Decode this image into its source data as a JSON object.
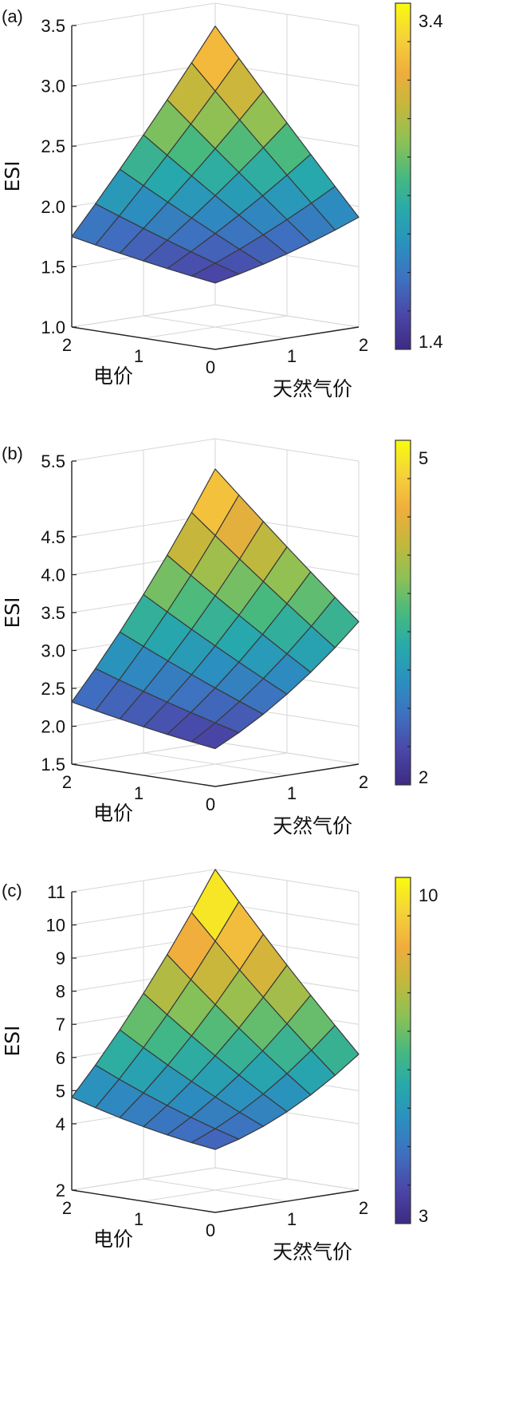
{
  "chart_data": [
    {
      "type": "surface",
      "panel_label": "(a)",
      "zlabel": "ESI",
      "xlabel": "电价",
      "ylabel": "天然气价",
      "x_ticks": [
        "2",
        "1",
        "0"
      ],
      "y_ticks": [
        "1",
        "2"
      ],
      "z_ticks": [
        "1.0",
        "1.5",
        "2.0",
        "2.5",
        "3.0",
        "3.5"
      ],
      "zlim": [
        1.0,
        3.5
      ],
      "x": [
        0,
        0.33,
        0.67,
        1.0,
        1.33,
        1.67,
        2.0
      ],
      "y": [
        0,
        0.33,
        0.67,
        1.0,
        1.33,
        1.67,
        2.0
      ],
      "surface_model": {
        "base": 1.55,
        "cx": 0.08,
        "cy": 0.12,
        "cxy": 0.3,
        "cxx": 0.01,
        "cyy": 0.03
      },
      "colorbar": {
        "min": 1.4,
        "max": 3.4,
        "tick_labels": [
          "1.4",
          "3.4"
        ]
      },
      "grid": true
    },
    {
      "type": "surface",
      "panel_label": "(b)",
      "zlabel": "ESI",
      "xlabel": "电价",
      "ylabel": "天然气价",
      "x_ticks": [
        "2",
        "1",
        "0"
      ],
      "y_ticks": [
        "1",
        "2"
      ],
      "z_ticks": [
        "1.5",
        "2.0",
        "2.5",
        "3.0",
        "3.5",
        "4.0",
        "4.5",
        "5.5"
      ],
      "zlim": [
        1.5,
        5.5
      ],
      "x": [
        0,
        0.33,
        0.67,
        1.0,
        1.33,
        1.67,
        2.0
      ],
      "y": [
        0,
        0.33,
        0.67,
        1.0,
        1.33,
        1.67,
        2.0
      ],
      "surface_model": {
        "base": 2.0,
        "cx": 0.12,
        "cy": 0.45,
        "cxy": 0.35,
        "cxx": 0.02,
        "cyy": 0.12
      },
      "colorbar": {
        "min": 1.8,
        "max": 5.2,
        "tick_labels": [
          "2",
          "5"
        ]
      },
      "grid": true
    },
    {
      "type": "surface",
      "panel_label": "(c)",
      "zlabel": "ESI",
      "xlabel": "电价",
      "ylabel": "天然气价",
      "x_ticks": [
        "2",
        "1",
        "0"
      ],
      "y_ticks": [
        "1",
        "2"
      ],
      "z_ticks": [
        "2",
        "4",
        "5",
        "6",
        "7",
        "8",
        "9",
        "10",
        "11"
      ],
      "zlim": [
        2,
        11
      ],
      "x": [
        0,
        0.33,
        0.67,
        1.0,
        1.33,
        1.67,
        2.0
      ],
      "y": [
        0,
        0.33,
        0.67,
        1.0,
        1.33,
        1.67,
        2.0
      ],
      "surface_model": {
        "base": 3.9,
        "cx": 0.25,
        "cy": 0.5,
        "cxy": 1.0,
        "cxx": 0.1,
        "cyy": 0.3
      },
      "colorbar": {
        "min": 2.7,
        "max": 10.4,
        "tick_labels": [
          "3",
          "10"
        ]
      },
      "grid": true
    }
  ],
  "colormap": [
    "#3e2a84",
    "#4a47a8",
    "#3f6fc0",
    "#2b8fbf",
    "#27a9ab",
    "#48b97e",
    "#8cc155",
    "#c3b83c",
    "#f0ad3d",
    "#f5d23a",
    "#f9fb0f"
  ]
}
